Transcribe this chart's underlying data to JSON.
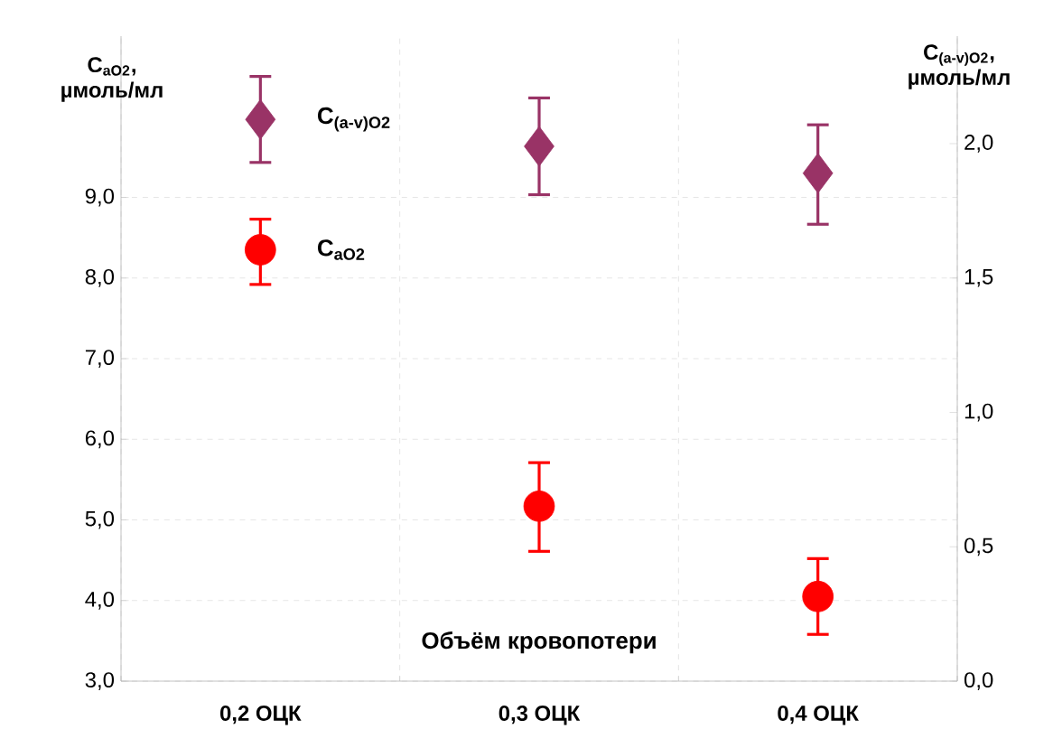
{
  "chart_data": {
    "type": "scatter",
    "categories": [
      "0,2 ОЦК",
      "0,3 ОЦК",
      "0,4 ОЦК"
    ],
    "xlabel": "Объём кровопотери",
    "ylabel": "C$_{aO2}$, µмоль/мл",
    "y2label": "C$_{(a-v)O2}$, µмоль/мл",
    "ylim": [
      3,
      11
    ],
    "yticks": [
      {
        "value": 3,
        "label": "3,0"
      },
      {
        "value": 4,
        "label": "4,0"
      },
      {
        "value": 5,
        "label": "5,0"
      },
      {
        "value": 6,
        "label": "6,0"
      },
      {
        "value": 7,
        "label": "7,0"
      },
      {
        "value": 8,
        "label": "8,0"
      },
      {
        "value": 9,
        "label": "9,0"
      }
    ],
    "y2lim": [
      0,
      2.4
    ],
    "y2ticks": [
      {
        "value": 0,
        "label": "0,0"
      },
      {
        "value": 0.5,
        "label": "0,5"
      },
      {
        "value": 1,
        "label": "1,0"
      },
      {
        "value": 1.5,
        "label": "1,5"
      },
      {
        "value": 2,
        "label": "2,0"
      }
    ],
    "grid": true,
    "series": [
      {
        "name": "C$_{aO2}$",
        "color": "#ff0000",
        "marker": "circle",
        "values": [
          8.35,
          5.17,
          4.05
        ],
        "errors": [
          [
            7.92,
            8.73
          ],
          [
            4.61,
            5.71
          ],
          [
            3.58,
            4.52
          ]
        ]
      },
      {
        "name": "C$_{(a-v)O2}$",
        "color": "#993366",
        "marker": "diamond",
        "axis": "y2",
        "values": [
          2.09,
          1.99,
          1.89
        ],
        "errors": [
          [
            1.93,
            2.25
          ],
          [
            1.81,
            2.17
          ],
          [
            1.7,
            2.07
          ]
        ]
      }
    ]
  }
}
